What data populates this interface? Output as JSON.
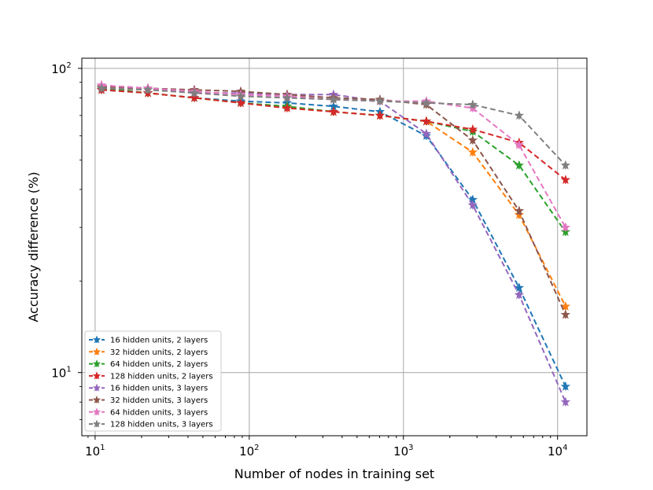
{
  "chart_data": {
    "type": "line",
    "title": "",
    "xlabel": "Number of nodes in training set",
    "ylabel": "Accuracy difference (%)",
    "xscale": "log",
    "yscale": "log",
    "xlim": [
      8.2,
      15500
    ],
    "ylim": [
      6.2,
      108
    ],
    "x_ticks": [
      {
        "value": 10,
        "base": "10",
        "exp": "1"
      },
      {
        "value": 100,
        "base": "10",
        "exp": "2"
      },
      {
        "value": 1000,
        "base": "10",
        "exp": "3"
      },
      {
        "value": 10000,
        "base": "10",
        "exp": "4"
      }
    ],
    "y_ticks": [
      {
        "value": 10,
        "base": "10",
        "exp": "1"
      },
      {
        "value": 100,
        "base": "10",
        "exp": "2"
      }
    ],
    "grid": true,
    "legend_position": "lower-left",
    "x": [
      11,
      22,
      44,
      88,
      176,
      352,
      704,
      1408,
      2816,
      5632,
      11264
    ],
    "series": [
      {
        "name": "16 hidden units, 2 layers",
        "color": "#1f77b4",
        "values": [
          85,
          83,
          80,
          78,
          77,
          75,
          72,
          60,
          37,
          19,
          9
        ]
      },
      {
        "name": "32 hidden units, 2 layers",
        "color": "#ff7f0e",
        "values": [
          86,
          83,
          80,
          77,
          75,
          72,
          70,
          67,
          53,
          33,
          16.5
        ]
      },
      {
        "name": "64 hidden units, 2 layers",
        "color": "#2ca02c",
        "values": [
          86,
          83,
          80,
          77,
          75,
          72,
          70,
          67,
          62,
          48,
          29
        ]
      },
      {
        "name": "128 hidden units, 2 layers",
        "color": "#d62728",
        "values": [
          85,
          83,
          80,
          77,
          74,
          72,
          70,
          67,
          63,
          57,
          43
        ]
      },
      {
        "name": "16 hidden units, 3 layers",
        "color": "#9467bd",
        "values": [
          88,
          86,
          83,
          83,
          82,
          82,
          78,
          61,
          35.5,
          18,
          8
        ]
      },
      {
        "name": "32 hidden units, 3 layers",
        "color": "#8c564b",
        "values": [
          87,
          86,
          85,
          84,
          82,
          80,
          79,
          76,
          58,
          34,
          15.5
        ]
      },
      {
        "name": "64 hidden units, 3 layers",
        "color": "#e377c2",
        "values": [
          88,
          86,
          84,
          82,
          81,
          79,
          78,
          78,
          74,
          56,
          30
        ]
      },
      {
        "name": "128 hidden units, 3 layers",
        "color": "#7f7f7f",
        "values": [
          86,
          85,
          83,
          81,
          80,
          79,
          78,
          77,
          76,
          70,
          48
        ]
      }
    ]
  }
}
